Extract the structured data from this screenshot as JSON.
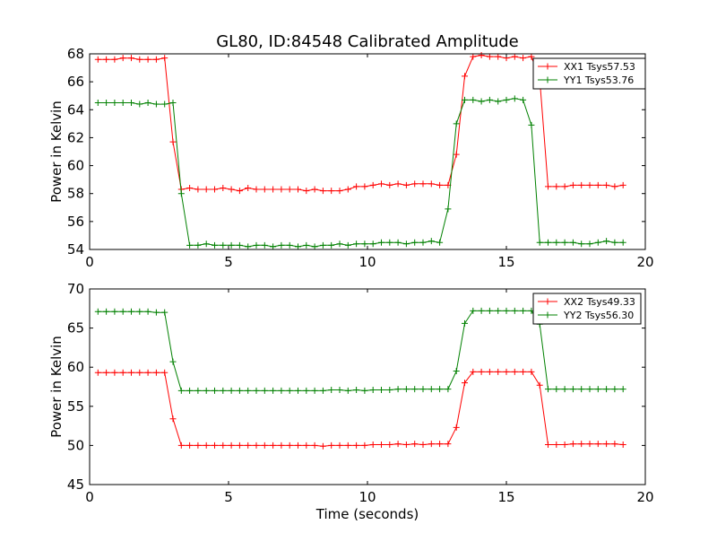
{
  "title": "GL80, ID:84548 Calibrated Amplitude",
  "chart_data": [
    {
      "type": "line",
      "title": "GL80, ID:84548 Calibrated Amplitude",
      "xlabel": "",
      "ylabel": "Power in Kelvin",
      "xlim": [
        0,
        20
      ],
      "ylim": [
        54,
        68
      ],
      "xticks": [
        "0",
        "5",
        "10",
        "15",
        "20"
      ],
      "yticks": [
        "54",
        "56",
        "58",
        "60",
        "62",
        "64",
        "66",
        "68"
      ],
      "grid": false,
      "legend_position": "top-right",
      "x": [
        0.3,
        0.6,
        0.9,
        1.2,
        1.5,
        1.8,
        2.1,
        2.4,
        2.7,
        3.0,
        3.3,
        3.6,
        3.9,
        4.2,
        4.5,
        4.8,
        5.1,
        5.4,
        5.7,
        6.0,
        6.3,
        6.6,
        6.9,
        7.2,
        7.5,
        7.8,
        8.1,
        8.4,
        8.7,
        9.0,
        9.3,
        9.6,
        9.9,
        10.2,
        10.5,
        10.8,
        11.1,
        11.4,
        11.7,
        12.0,
        12.3,
        12.6,
        12.9,
        13.2,
        13.5,
        13.8,
        14.1,
        14.4,
        14.7,
        15.0,
        15.3,
        15.6,
        15.9,
        16.2,
        16.5,
        16.8,
        17.1,
        17.4,
        17.7,
        18.0,
        18.3,
        18.6,
        18.9,
        19.2
      ],
      "series": [
        {
          "name": "XX1 Tsys57.53",
          "color": "#ff0000",
          "values": [
            67.6,
            67.6,
            67.6,
            67.7,
            67.7,
            67.6,
            67.6,
            67.6,
            67.7,
            61.7,
            58.3,
            58.4,
            58.3,
            58.3,
            58.3,
            58.4,
            58.3,
            58.2,
            58.4,
            58.3,
            58.3,
            58.3,
            58.3,
            58.3,
            58.3,
            58.2,
            58.3,
            58.2,
            58.2,
            58.2,
            58.3,
            58.5,
            58.5,
            58.6,
            58.7,
            58.6,
            58.7,
            58.6,
            58.7,
            58.7,
            58.7,
            58.6,
            58.6,
            60.8,
            66.4,
            67.8,
            67.9,
            67.8,
            67.8,
            67.7,
            67.8,
            67.7,
            67.8,
            66.2,
            58.5,
            58.5,
            58.5,
            58.6,
            58.6,
            58.6,
            58.6,
            58.6,
            58.5,
            58.6
          ]
        },
        {
          "name": "YY1 Tsys53.76",
          "color": "#008000",
          "values": [
            64.5,
            64.5,
            64.5,
            64.5,
            64.5,
            64.4,
            64.5,
            64.4,
            64.4,
            64.5,
            58.0,
            54.3,
            54.3,
            54.4,
            54.3,
            54.3,
            54.3,
            54.3,
            54.2,
            54.3,
            54.3,
            54.2,
            54.3,
            54.3,
            54.2,
            54.3,
            54.2,
            54.3,
            54.3,
            54.4,
            54.3,
            54.4,
            54.4,
            54.4,
            54.5,
            54.5,
            54.5,
            54.4,
            54.5,
            54.5,
            54.6,
            54.5,
            56.9,
            63.0,
            64.7,
            64.7,
            64.6,
            64.7,
            64.6,
            64.7,
            64.8,
            64.7,
            62.9,
            54.5,
            54.5,
            54.5,
            54.5,
            54.5,
            54.4,
            54.4,
            54.5,
            54.6,
            54.5,
            54.5
          ]
        }
      ]
    },
    {
      "type": "line",
      "title": "",
      "xlabel": "Time (seconds)",
      "ylabel": "Power in Kelvin",
      "xlim": [
        0,
        20
      ],
      "ylim": [
        45,
        70
      ],
      "xticks": [
        "0",
        "5",
        "10",
        "15",
        "20"
      ],
      "yticks": [
        "45",
        "50",
        "55",
        "60",
        "65",
        "70"
      ],
      "grid": false,
      "legend_position": "top-right",
      "x": [
        0.3,
        0.6,
        0.9,
        1.2,
        1.5,
        1.8,
        2.1,
        2.4,
        2.7,
        3.0,
        3.3,
        3.6,
        3.9,
        4.2,
        4.5,
        4.8,
        5.1,
        5.4,
        5.7,
        6.0,
        6.3,
        6.6,
        6.9,
        7.2,
        7.5,
        7.8,
        8.1,
        8.4,
        8.7,
        9.0,
        9.3,
        9.6,
        9.9,
        10.2,
        10.5,
        10.8,
        11.1,
        11.4,
        11.7,
        12.0,
        12.3,
        12.6,
        12.9,
        13.2,
        13.5,
        13.8,
        14.1,
        14.4,
        14.7,
        15.0,
        15.3,
        15.6,
        15.9,
        16.2,
        16.5,
        16.8,
        17.1,
        17.4,
        17.7,
        18.0,
        18.3,
        18.6,
        18.9,
        19.2
      ],
      "series": [
        {
          "name": "XX2 Tsys49.33",
          "color": "#ff0000",
          "values": [
            59.3,
            59.3,
            59.3,
            59.3,
            59.3,
            59.3,
            59.3,
            59.3,
            59.3,
            53.4,
            50.0,
            50.0,
            50.0,
            50.0,
            50.0,
            50.0,
            50.0,
            50.0,
            50.0,
            50.0,
            50.0,
            50.0,
            50.0,
            50.0,
            50.0,
            50.0,
            50.0,
            49.9,
            50.0,
            50.0,
            50.0,
            50.0,
            50.0,
            50.1,
            50.1,
            50.1,
            50.2,
            50.1,
            50.2,
            50.1,
            50.2,
            50.2,
            50.2,
            52.3,
            58.0,
            59.4,
            59.4,
            59.4,
            59.4,
            59.4,
            59.4,
            59.4,
            59.4,
            57.7,
            50.1,
            50.1,
            50.1,
            50.2,
            50.2,
            50.2,
            50.2,
            50.2,
            50.2,
            50.1
          ]
        },
        {
          "name": "YY2 Tsys56.30",
          "color": "#008000",
          "values": [
            67.1,
            67.1,
            67.1,
            67.1,
            67.1,
            67.1,
            67.1,
            67.0,
            67.0,
            60.7,
            57.0,
            57.0,
            57.0,
            57.0,
            57.0,
            57.0,
            57.0,
            57.0,
            57.0,
            57.0,
            57.0,
            57.0,
            57.0,
            57.0,
            57.0,
            57.0,
            57.0,
            57.0,
            57.1,
            57.1,
            57.0,
            57.1,
            57.0,
            57.1,
            57.1,
            57.1,
            57.2,
            57.2,
            57.2,
            57.2,
            57.2,
            57.2,
            57.2,
            59.5,
            65.6,
            67.2,
            67.2,
            67.2,
            67.2,
            67.2,
            67.2,
            67.2,
            67.2,
            65.5,
            57.2,
            57.2,
            57.2,
            57.2,
            57.2,
            57.2,
            57.2,
            57.2,
            57.2,
            57.2
          ]
        }
      ]
    }
  ]
}
